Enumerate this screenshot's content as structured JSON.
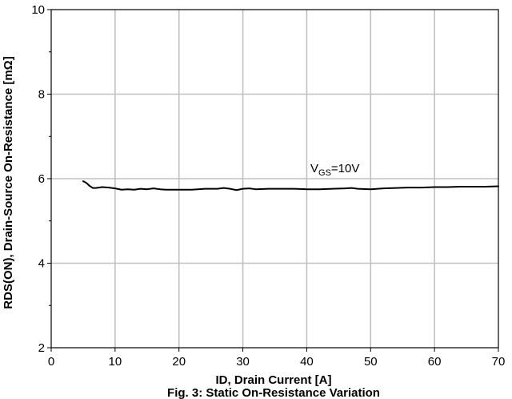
{
  "chart_data": {
    "type": "line",
    "title": "",
    "caption": "Fig. 3: Static On-Resistance Variation",
    "xlabel": "ID, Drain Current [A]",
    "ylabel": "RDS(ON), Drain-Source On-Resistance [mΩ]",
    "xlim": [
      0,
      70
    ],
    "ylim": [
      2,
      10
    ],
    "xticks": [
      0,
      10,
      20,
      30,
      40,
      50,
      60,
      70
    ],
    "yticks": [
      2,
      4,
      6,
      8,
      10
    ],
    "grid": true,
    "series": [
      {
        "name": "VGS=10V",
        "label_main": "V",
        "label_sub": "GS",
        "label_rest": "=10V",
        "color": "#000000",
        "x": [
          5,
          5.5,
          6,
          6.5,
          7,
          8,
          9,
          10,
          11,
          12,
          13,
          14,
          15,
          16,
          17,
          18,
          19,
          20,
          22,
          24,
          26,
          27,
          28,
          29,
          30,
          31,
          32,
          34,
          36,
          38,
          40,
          42,
          44,
          46,
          47,
          48,
          50,
          52,
          54,
          56,
          58,
          60,
          62,
          64,
          66,
          68,
          70
        ],
        "y": [
          5.94,
          5.9,
          5.83,
          5.78,
          5.78,
          5.8,
          5.79,
          5.77,
          5.74,
          5.75,
          5.74,
          5.76,
          5.75,
          5.77,
          5.75,
          5.74,
          5.74,
          5.74,
          5.74,
          5.76,
          5.76,
          5.78,
          5.76,
          5.73,
          5.76,
          5.77,
          5.75,
          5.76,
          5.76,
          5.76,
          5.75,
          5.75,
          5.76,
          5.77,
          5.78,
          5.76,
          5.75,
          5.77,
          5.78,
          5.79,
          5.79,
          5.8,
          5.8,
          5.81,
          5.81,
          5.81,
          5.82
        ]
      }
    ]
  }
}
